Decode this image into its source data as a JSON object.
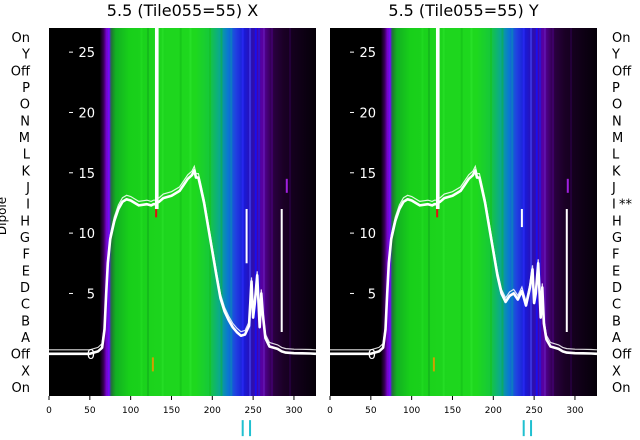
{
  "figure": {
    "ylabel": "Dipole"
  },
  "chart_data": [
    {
      "type": "heatmap",
      "title": "5.5 (Tile055=55) X",
      "xlim": [
        0,
        327
      ],
      "xticks": [
        0,
        50,
        100,
        150,
        200,
        250,
        300
      ],
      "ylim": [
        -3.5,
        27
      ],
      "yticks": [
        0,
        5,
        10,
        15,
        20,
        25
      ],
      "row_labels": [
        "On",
        "X",
        "Off",
        "A",
        "B",
        "C",
        "D",
        "E",
        "F",
        "G",
        "H",
        "I",
        "J",
        "K",
        "L",
        "M",
        "N",
        "O",
        "P",
        "Off",
        "Y",
        "On"
      ],
      "row_marks": [
        "",
        "",
        "",
        "",
        "",
        "",
        "",
        "",
        "",
        "",
        "",
        "",
        "",
        "",
        "",
        "",
        "",
        "",
        "",
        "",
        "",
        ""
      ],
      "line": {
        "color": "#ffffff",
        "x": [
          0,
          50,
          60,
          65,
          68,
          70,
          72,
          75,
          80,
          85,
          90,
          95,
          100,
          110,
          120,
          125,
          128,
          130,
          132,
          135,
          140,
          150,
          160,
          165,
          170,
          175,
          178,
          180,
          183,
          185,
          190,
          195,
          200,
          205,
          210,
          215,
          220,
          225,
          230,
          235,
          240,
          245,
          248,
          250,
          252,
          255,
          258,
          260,
          262,
          265,
          270,
          280,
          285,
          290,
          300,
          310,
          320,
          327
        ],
        "y": [
          0,
          0,
          0.2,
          0.5,
          2,
          5,
          7.5,
          9.5,
          11,
          12,
          12.6,
          12.8,
          12.7,
          12.3,
          12.4,
          12.3,
          12.4,
          12.4,
          12.5,
          12.6,
          12.9,
          13.1,
          13.5,
          14,
          14.5,
          14.8,
          15.2,
          14.6,
          14.6,
          14,
          12.5,
          10.5,
          8.5,
          6.5,
          4.6,
          3.5,
          2.8,
          2.2,
          1.8,
          1.5,
          1.6,
          2.3,
          6,
          3,
          4.2,
          6.5,
          2.2,
          5,
          3.2,
          1.3,
          0.6,
          0.4,
          0.2,
          0.1,
          0.05,
          0.04,
          0.02,
          0
        ]
      },
      "spikes": [
        {
          "x": 131,
          "y": 27
        },
        {
          "x": 133,
          "y": 27
        },
        {
          "x": 242,
          "y": 7.5
        },
        {
          "x": 285,
          "y": 1.8
        }
      ]
    },
    {
      "type": "heatmap",
      "title": "5.5 (Tile055=55) Y",
      "xlim": [
        0,
        327
      ],
      "xticks": [
        0,
        50,
        100,
        150,
        200,
        250,
        300
      ],
      "ylim": [
        -3.5,
        27
      ],
      "yticks": [
        0,
        5,
        10,
        15,
        20,
        25
      ],
      "row_labels": [
        "On",
        "X",
        "Off",
        "A",
        "B",
        "C",
        "D",
        "E",
        "F",
        "G",
        "H",
        "I",
        "J",
        "K",
        "L",
        "M",
        "N",
        "O",
        "P",
        "Off",
        "Y",
        "On"
      ],
      "row_marks": [
        "",
        "",
        "",
        "",
        "",
        "",
        "",
        "",
        "",
        "",
        "",
        "**",
        "",
        "",
        "",
        "",
        "",
        "",
        "",
        "",
        "",
        ""
      ],
      "line": {
        "color": "#ffffff",
        "x": [
          0,
          50,
          60,
          65,
          68,
          70,
          72,
          75,
          80,
          85,
          90,
          95,
          100,
          110,
          120,
          125,
          128,
          130,
          132,
          135,
          140,
          150,
          160,
          165,
          170,
          175,
          178,
          180,
          183,
          185,
          190,
          195,
          200,
          205,
          210,
          215,
          220,
          225,
          230,
          235,
          240,
          245,
          248,
          250,
          252,
          255,
          258,
          260,
          262,
          265,
          270,
          280,
          285,
          290,
          300,
          310,
          320,
          327
        ],
        "y": [
          0,
          0,
          0.2,
          0.5,
          2,
          5,
          7.5,
          9.5,
          11,
          12,
          12.6,
          12.8,
          12.7,
          12.3,
          12.4,
          12.3,
          12.4,
          12.4,
          12.5,
          12.6,
          12.9,
          13.1,
          13.5,
          14,
          14.5,
          14.8,
          15.2,
          14.6,
          14.6,
          14,
          12.5,
          10.5,
          8.5,
          6.5,
          5,
          4.3,
          4.8,
          5,
          4.5,
          5.2,
          4,
          5.5,
          7,
          4.2,
          5,
          7.5,
          3,
          5.5,
          2.5,
          1.2,
          0.6,
          0.4,
          0.2,
          0.1,
          0.05,
          0.04,
          0.02,
          0
        ]
      },
      "spikes": [
        {
          "x": 131,
          "y": 27
        },
        {
          "x": 133,
          "y": 27
        },
        {
          "x": 235,
          "y": 10.5
        },
        {
          "x": 290,
          "y": 1.8
        }
      ]
    }
  ]
}
